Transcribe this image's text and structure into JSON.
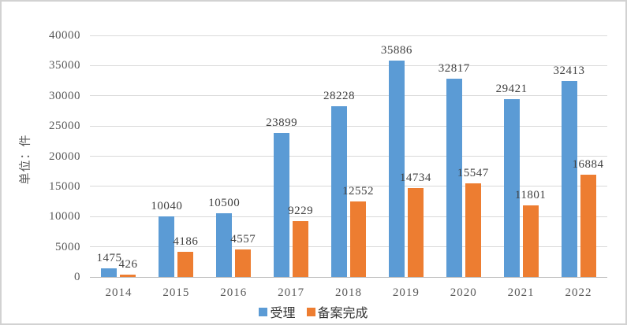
{
  "chart_data": {
    "type": "bar",
    "categories": [
      "2014",
      "2015",
      "2016",
      "2017",
      "2018",
      "2019",
      "2020",
      "2021",
      "2022"
    ],
    "series": [
      {
        "name": "受理",
        "color": "#5B9BD5",
        "values": [
          1475,
          10040,
          10500,
          23899,
          28228,
          35886,
          32817,
          29421,
          32413
        ]
      },
      {
        "name": "备案完成",
        "color": "#ED7D31",
        "values": [
          426,
          4186,
          4557,
          9229,
          12552,
          14734,
          15547,
          11801,
          16884
        ]
      }
    ],
    "title": "",
    "xlabel": "",
    "ylabel": "单位：件",
    "ylim": [
      0,
      40000
    ],
    "ytick_step": 5000,
    "grid": true,
    "legend_position": "bottom",
    "data_labels": true
  },
  "colors": {
    "grid": "#d9d9d9",
    "baseline": "#bfbfbf",
    "axis_text": "#595959",
    "label_text": "#404040",
    "frame_border": "#d2d2d2",
    "background": "#ffffff"
  }
}
